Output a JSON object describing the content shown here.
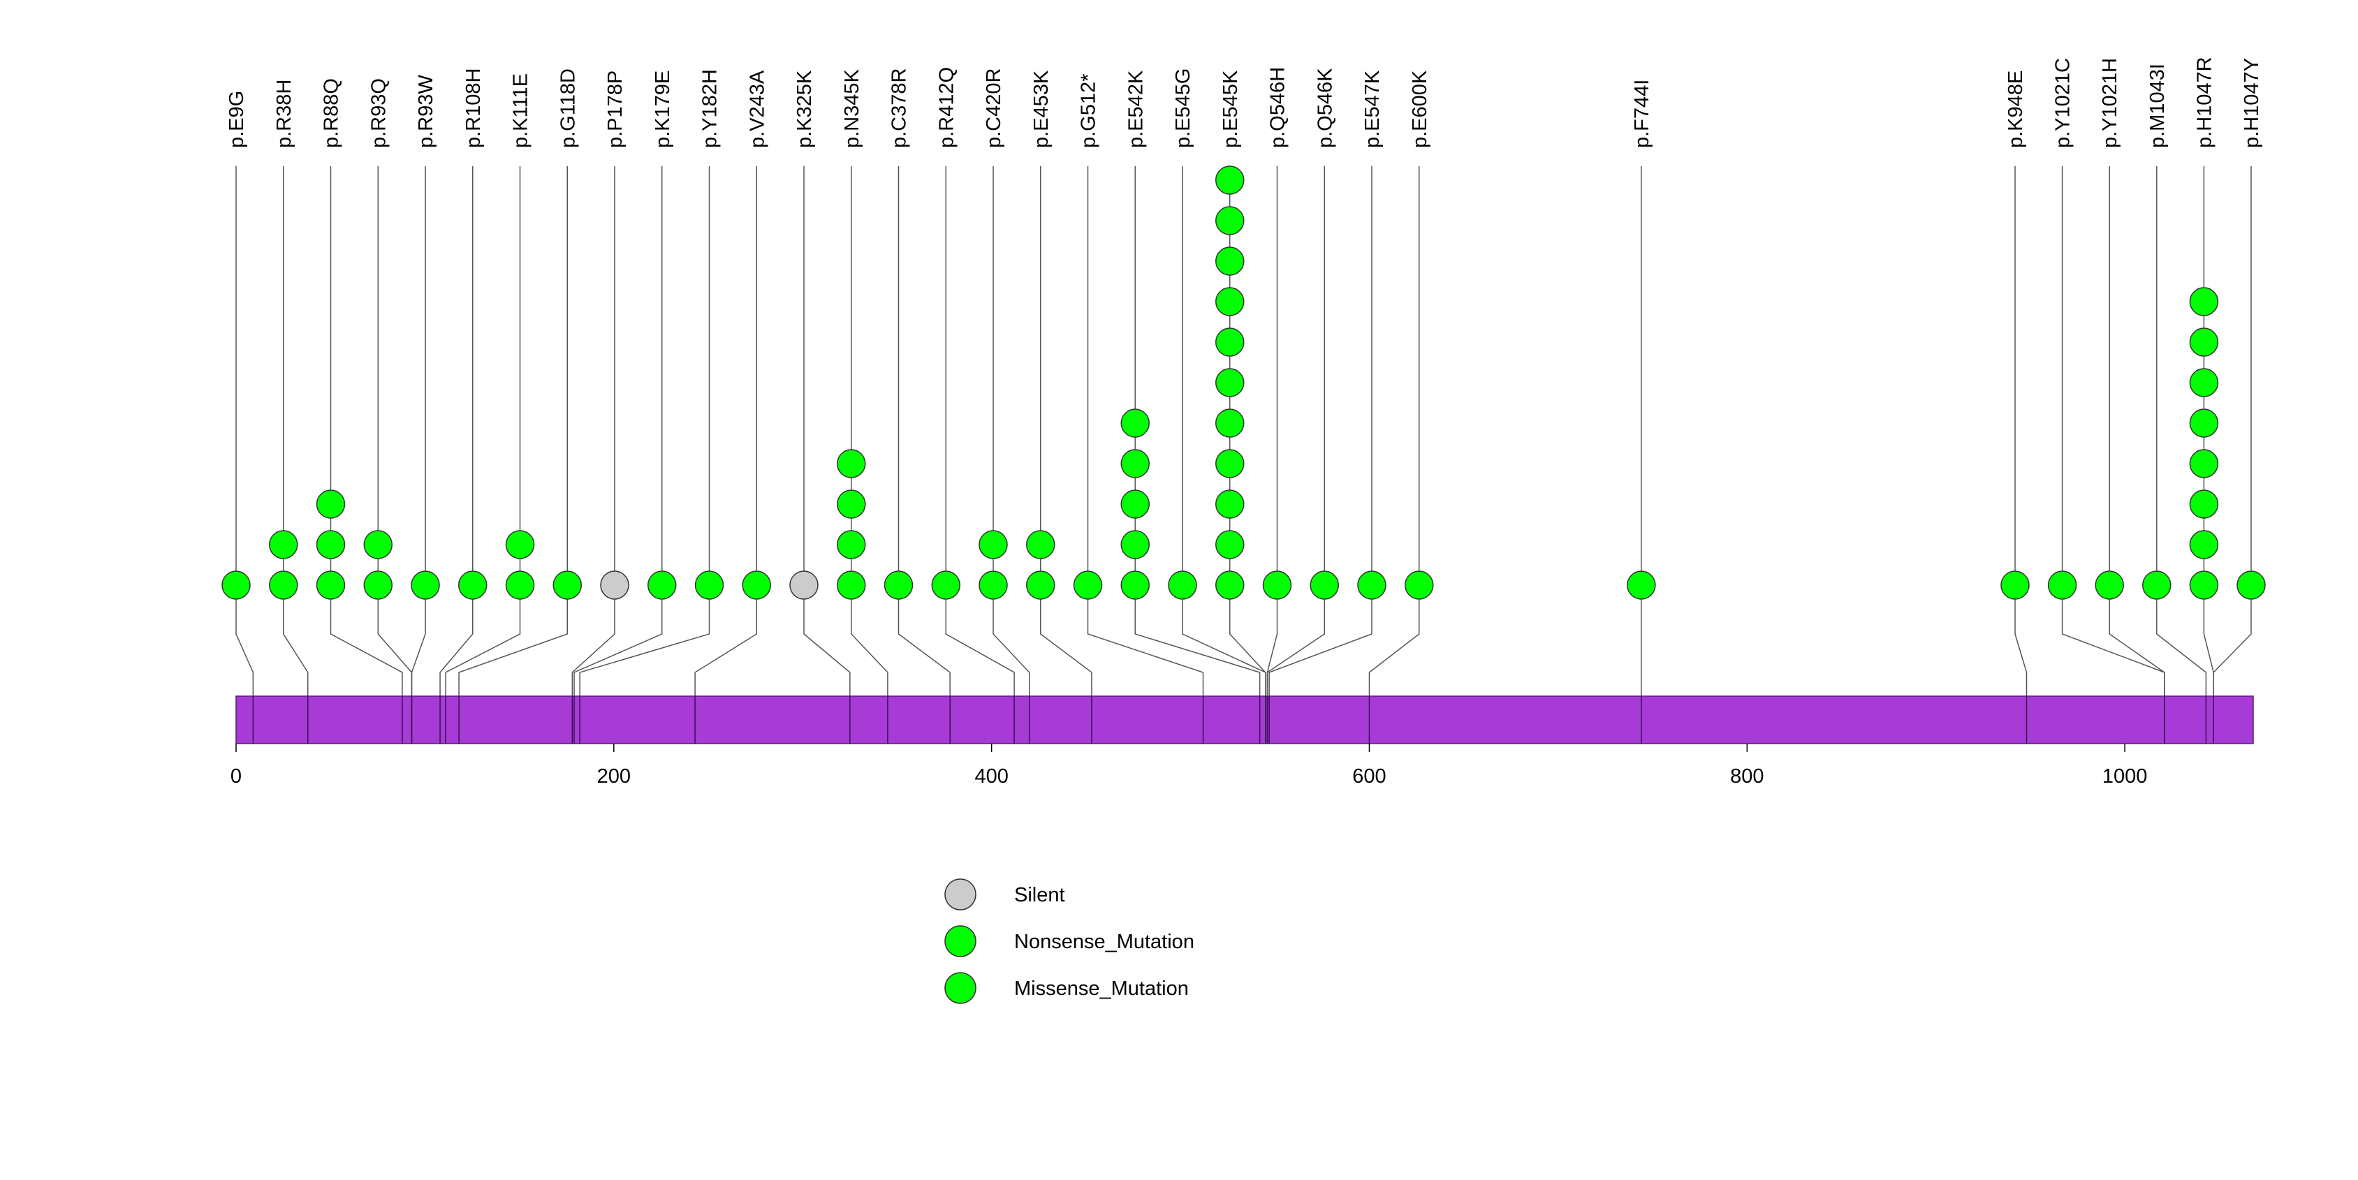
{
  "chart_data": {
    "type": "lollipop",
    "title": "",
    "xlabel": "",
    "ylabel": "",
    "xlim": [
      0,
      1068
    ],
    "x_ticks": [
      0,
      200,
      400,
      600,
      800,
      1000
    ],
    "protein_bar_color": "#a63bd6",
    "mutations": [
      {
        "label": "p.E9G",
        "position": 9,
        "count": 1,
        "type": "Missense_Mutation"
      },
      {
        "label": "p.R38H",
        "position": 38,
        "count": 2,
        "type": "Missense_Mutation"
      },
      {
        "label": "p.R88Q",
        "position": 88,
        "count": 3,
        "type": "Missense_Mutation"
      },
      {
        "label": "p.R93Q",
        "position": 93,
        "count": 2,
        "type": "Missense_Mutation"
      },
      {
        "label": "p.R93W",
        "position": 93,
        "count": 1,
        "type": "Missense_Mutation"
      },
      {
        "label": "p.R108H",
        "position": 108,
        "count": 1,
        "type": "Missense_Mutation"
      },
      {
        "label": "p.K111E",
        "position": 111,
        "count": 2,
        "type": "Missense_Mutation"
      },
      {
        "label": "p.G118D",
        "position": 118,
        "count": 1,
        "type": "Missense_Mutation"
      },
      {
        "label": "p.P178P",
        "position": 178,
        "count": 1,
        "type": "Silent"
      },
      {
        "label": "p.K179E",
        "position": 179,
        "count": 1,
        "type": "Missense_Mutation"
      },
      {
        "label": "p.Y182H",
        "position": 182,
        "count": 1,
        "type": "Missense_Mutation"
      },
      {
        "label": "p.V243A",
        "position": 243,
        "count": 1,
        "type": "Missense_Mutation"
      },
      {
        "label": "p.K325K",
        "position": 325,
        "count": 1,
        "type": "Silent"
      },
      {
        "label": "p.N345K",
        "position": 345,
        "count": 4,
        "type": "Missense_Mutation"
      },
      {
        "label": "p.C378R",
        "position": 378,
        "count": 1,
        "type": "Missense_Mutation"
      },
      {
        "label": "p.R412Q",
        "position": 412,
        "count": 1,
        "type": "Missense_Mutation"
      },
      {
        "label": "p.C420R",
        "position": 420,
        "count": 2,
        "type": "Missense_Mutation"
      },
      {
        "label": "p.E453K",
        "position": 453,
        "count": 2,
        "type": "Missense_Mutation"
      },
      {
        "label": "p.G512*",
        "position": 512,
        "count": 1,
        "type": "Nonsense_Mutation"
      },
      {
        "label": "p.E542K",
        "position": 542,
        "count": 5,
        "type": "Missense_Mutation"
      },
      {
        "label": "p.E545G",
        "position": 545,
        "count": 1,
        "type": "Missense_Mutation"
      },
      {
        "label": "p.E545K",
        "position": 545,
        "count": 11,
        "type": "Missense_Mutation"
      },
      {
        "label": "p.Q546H",
        "position": 546,
        "count": 1,
        "type": "Missense_Mutation"
      },
      {
        "label": "p.Q546K",
        "position": 546,
        "count": 1,
        "type": "Missense_Mutation"
      },
      {
        "label": "p.E547K",
        "position": 547,
        "count": 1,
        "type": "Missense_Mutation"
      },
      {
        "label": "p.E600K",
        "position": 600,
        "count": 1,
        "type": "Missense_Mutation"
      },
      {
        "label": "p.F744I",
        "position": 744,
        "count": 1,
        "type": "Missense_Mutation"
      },
      {
        "label": "p.K948E",
        "position": 948,
        "count": 1,
        "type": "Missense_Mutation"
      },
      {
        "label": "p.Y1021C",
        "position": 1021,
        "count": 1,
        "type": "Missense_Mutation"
      },
      {
        "label": "p.Y1021H",
        "position": 1021,
        "count": 1,
        "type": "Missense_Mutation"
      },
      {
        "label": "p.M1043I",
        "position": 1043,
        "count": 1,
        "type": "Missense_Mutation"
      },
      {
        "label": "p.H1047R",
        "position": 1047,
        "count": 8,
        "type": "Missense_Mutation"
      },
      {
        "label": "p.H1047Y",
        "position": 1047,
        "count": 1,
        "type": "Missense_Mutation"
      }
    ],
    "legend": [
      {
        "label": "Silent",
        "color": "#cccccc"
      },
      {
        "label": "Nonsense_Mutation",
        "color": "#00ff00"
      },
      {
        "label": "Missense_Mutation",
        "color": "#00ff00"
      }
    ],
    "type_colors": {
      "Silent": "#cccccc",
      "Nonsense_Mutation": "#00ff00",
      "Missense_Mutation": "#00ff00"
    }
  }
}
